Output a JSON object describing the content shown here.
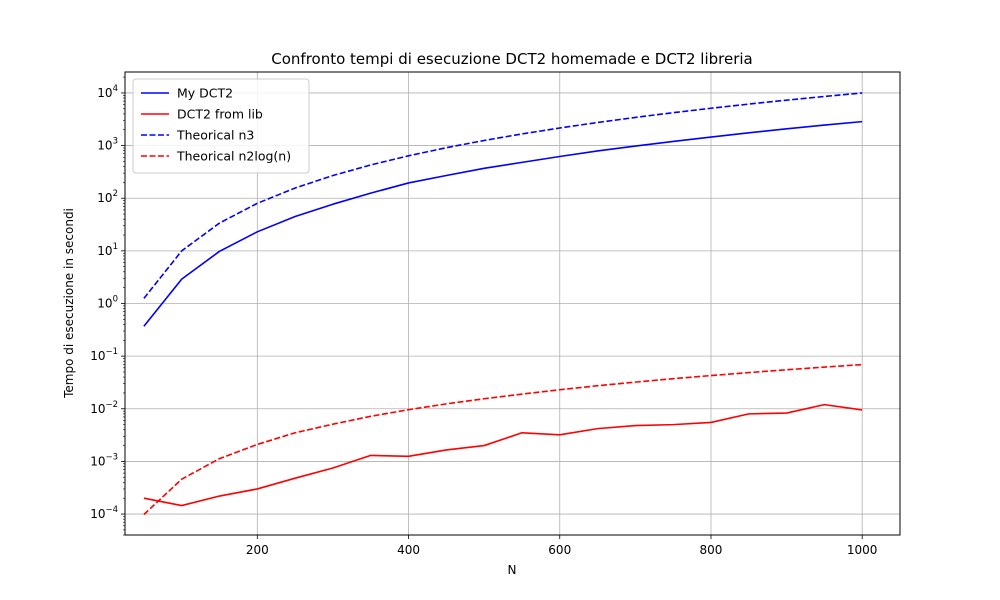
{
  "chart_data": {
    "type": "line",
    "title": "Confronto tempi di esecuzione DCT2 homemade e DCT2 libreria",
    "xlabel": "N",
    "ylabel": "Tempo di esecuzione in secondi",
    "yscale": "log",
    "xlim": [
      25,
      1050
    ],
    "ylim": [
      4e-05,
      25000
    ],
    "x_ticks": [
      200,
      400,
      600,
      800,
      1000
    ],
    "y_ticks": [
      {
        "value": 0.0001,
        "base": "10",
        "exp": "−4"
      },
      {
        "value": 0.001,
        "base": "10",
        "exp": "−3"
      },
      {
        "value": 0.01,
        "base": "10",
        "exp": "−2"
      },
      {
        "value": 0.1,
        "base": "10",
        "exp": "−1"
      },
      {
        "value": 1,
        "base": "10",
        "exp": "0"
      },
      {
        "value": 10,
        "base": "10",
        "exp": "1"
      },
      {
        "value": 100,
        "base": "10",
        "exp": "2"
      },
      {
        "value": 1000,
        "base": "10",
        "exp": "3"
      },
      {
        "value": 10000,
        "base": "10",
        "exp": "4"
      }
    ],
    "grid": true,
    "legend_position": "top-left",
    "x": [
      50,
      100,
      150,
      200,
      250,
      300,
      350,
      400,
      450,
      500,
      550,
      600,
      650,
      700,
      750,
      800,
      850,
      900,
      950,
      1000
    ],
    "series": [
      {
        "name": "My DCT2",
        "color": "#0000ff",
        "style": "solid",
        "values": [
          0.37,
          2.9,
          9.8,
          23,
          45,
          77,
          125,
          195,
          270,
          370,
          480,
          620,
          790,
          980,
          1200,
          1450,
          1750,
          2080,
          2450,
          2850
        ]
      },
      {
        "name": "DCT2 from lib",
        "color": "#ff0000",
        "style": "solid",
        "values": [
          0.0002,
          0.000145,
          0.00022,
          0.0003,
          0.00048,
          0.00075,
          0.0013,
          0.00125,
          0.00165,
          0.002,
          0.0035,
          0.0032,
          0.0042,
          0.0048,
          0.005,
          0.0055,
          0.008,
          0.0083,
          0.012,
          0.0095
        ]
      },
      {
        "name": "Theorical n3",
        "color": "#0000ff",
        "style": "dashed",
        "values": [
          1.25,
          10,
          33.75,
          80,
          156.25,
          270,
          428.75,
          640,
          911.25,
          1250,
          1663.75,
          2160,
          2746.25,
          3430,
          4218.75,
          5120,
          6141.25,
          7290,
          8573.75,
          10000
        ]
      },
      {
        "name": "Theorical n2log(n)",
        "color": "#ff0000",
        "style": "dashed",
        "values": [
          9.8e-05,
          0.00046,
          0.00113,
          0.0021,
          0.0035,
          0.0051,
          0.0072,
          0.0096,
          0.0124,
          0.0155,
          0.019,
          0.023,
          0.0274,
          0.0321,
          0.0373,
          0.0428,
          0.0487,
          0.0551,
          0.0619,
          0.0691
        ]
      }
    ]
  }
}
